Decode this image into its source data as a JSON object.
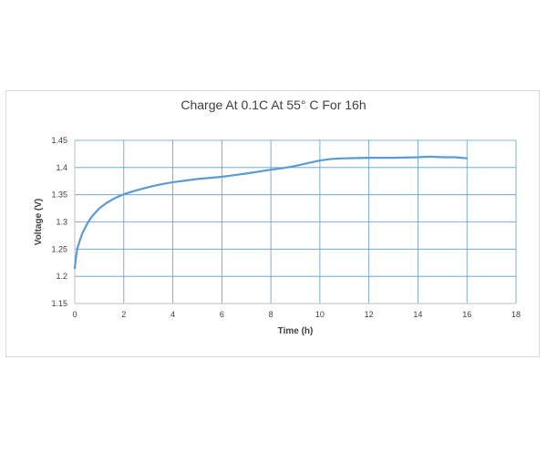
{
  "chart_data": {
    "type": "line",
    "title": "Charge At 0.1C At 55° C For 16h",
    "xlabel": "Time (h)",
    "ylabel": "Voltage (V)",
    "xlim": [
      0,
      18
    ],
    "ylim": [
      1.15,
      1.45
    ],
    "x_ticks": [
      "0",
      "2",
      "4",
      "6",
      "8",
      "10",
      "12",
      "14",
      "16",
      "18"
    ],
    "y_ticks": [
      "1.15",
      "1.2",
      "1.25",
      "1.3",
      "1.35",
      "1.4",
      "1.45"
    ],
    "grid": true,
    "legend": "none",
    "colors": {
      "line": "#5b9bd5",
      "grid": "#5b9bd5",
      "axis": "#bfbfbf",
      "text": "#404040"
    },
    "series": [
      {
        "x": [
          0,
          0.05,
          0.1,
          0.2,
          0.3,
          0.5,
          0.7,
          1.0,
          1.3,
          1.6,
          2.0,
          2.5,
          3.0,
          3.5,
          4.0,
          4.5,
          5.0,
          6.0,
          7.0,
          8.0,
          8.5,
          9.0,
          9.5,
          10.0,
          10.5,
          11.0,
          12.0,
          13.0,
          14.0,
          14.5,
          15.0,
          15.5,
          16.0
        ],
        "y": [
          1.215,
          1.235,
          1.25,
          1.265,
          1.278,
          1.296,
          1.31,
          1.325,
          1.335,
          1.343,
          1.351,
          1.358,
          1.364,
          1.369,
          1.373,
          1.376,
          1.379,
          1.383,
          1.389,
          1.396,
          1.399,
          1.403,
          1.408,
          1.413,
          1.416,
          1.417,
          1.418,
          1.418,
          1.419,
          1.42,
          1.419,
          1.419,
          1.417
        ]
      }
    ]
  }
}
